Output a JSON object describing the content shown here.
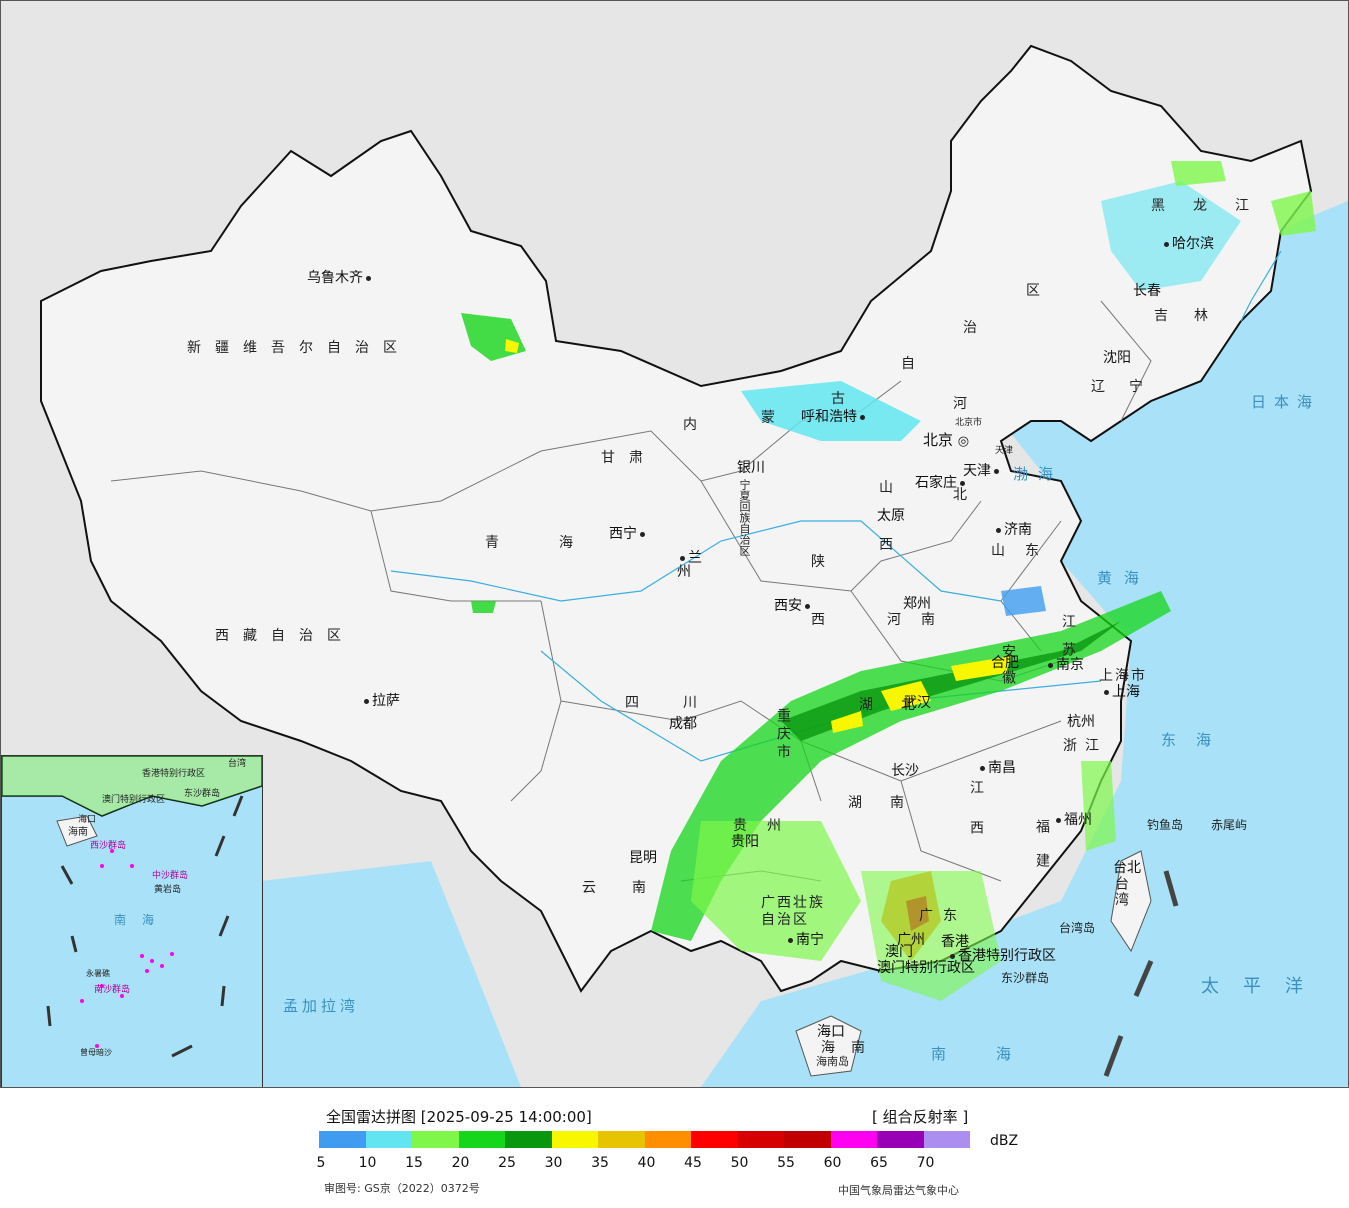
{
  "map": {
    "provinces": {
      "xinjiang": "新疆维吾尔自治区",
      "xizang": "西藏自治区",
      "qinghai": "青海",
      "gansu": "甘肃",
      "neimenggu_1": "内",
      "neimenggu_2": "蒙",
      "neimenggu_3": "古",
      "neimenggu_4": "自",
      "neimenggu_5": "治",
      "neimenggu_6": "区",
      "heilongjiang": "黑龙江",
      "jilin": "吉林",
      "liaoning": "辽宁",
      "hebei_1": "河",
      "hebei_2": "北",
      "shanxi_1": "山",
      "shanxi_2": "西",
      "shaanxi_1": "陕",
      "shaanxi_2": "西",
      "shandong": "山东",
      "henan": "河南",
      "jiangsu": "江苏",
      "anhui": "安徽",
      "hubei": "湖北",
      "sichuan": "四川",
      "chongqing": "重庆市",
      "guizhou": "贵州",
      "hunan": "湖南",
      "jiangxi": "江西",
      "zhejiang": "浙江",
      "fujian": "福建",
      "yunnan": "云南",
      "guangxi": "广西壮族自治区",
      "guangdong": "广东",
      "hainan": "海南",
      "taiwan": "台湾",
      "shanghai": "上海市",
      "ningxia": "宁夏回族自治区"
    },
    "cities": {
      "urumqi": "乌鲁木齐",
      "lhasa": "拉萨",
      "xining": "西宁",
      "lanzhou": "兰州",
      "yinchuan": "银川",
      "hohhot": "呼和浩特",
      "beijing_main": "北京",
      "beijing_small": "北京市",
      "tianjin_small": "天津",
      "tianjin": "天津",
      "shijiazhuang": "石家庄",
      "taiyuan": "太原",
      "jinan": "济南",
      "zhengzhou": "郑州",
      "xian": "西安",
      "chengdu": "成都",
      "wuhan": "武汉",
      "hefei": "合肥",
      "nanjing": "南京",
      "shanghai": "上海",
      "hangzhou": "杭州",
      "changsha": "长沙",
      "nanchang": "南昌",
      "fuzhou": "福州",
      "taibei": "台北",
      "guiyang": "贵阳",
      "kunming": "昆明",
      "nanning": "南宁",
      "guangzhou": "广州",
      "haikou": "海口",
      "harbin": "哈尔滨",
      "changchun": "长春",
      "shenyang": "沈阳",
      "hongkong": "香港",
      "hongkong_sar": "香港特别行政区",
      "macau": "澳门",
      "macau_sar": "澳门特别行政区"
    },
    "islands": {
      "diaoyu": "钓鱼岛",
      "chiwei": "赤尾屿",
      "taiwan_island": "台湾岛",
      "dongsha": "东沙群岛",
      "hainan_island": "海南岛"
    },
    "seas": {
      "bohai": "渤海",
      "huanghai": "黄海",
      "donghai": "东海",
      "nanhai": "南海",
      "taipingyang": "太平洋",
      "ribenhai": "日本海",
      "mengjialawan": "孟加拉湾"
    },
    "inset": {
      "nanhai": "南海",
      "zhongsha": "中沙群岛",
      "huangyan": "黄岩岛",
      "nansha": "南沙群岛",
      "yongshu": "永暑礁",
      "zengmu": "曾母暗沙",
      "xisha": "西沙群岛",
      "dongsha": "东沙群岛",
      "haikou": "海口",
      "hainan": "海南",
      "xianggang": "香港特别行政区",
      "aomen": "澳门特别行政区",
      "taiwan": "台湾"
    },
    "colors": {
      "land": "#f4f4f4",
      "outside": "#e6e6e6",
      "water": "#a9e2f8",
      "border": "#111111"
    }
  },
  "legend": {
    "title": "全国雷达拼图 [2025-09-25 14:00:00]",
    "product": "[ 组合反射率 ]",
    "unit": "dBZ",
    "colors": [
      "#3f9cf0",
      "#62e5f0",
      "#7ef74a",
      "#16d61b",
      "#0a9710",
      "#f8f700",
      "#e6c400",
      "#ff8f00",
      "#ff0000",
      "#d60000",
      "#c00000",
      "#ff00f0",
      "#9800b6",
      "#ab8ef0"
    ],
    "ticks": [
      "5",
      "10",
      "15",
      "20",
      "25",
      "30",
      "35",
      "40",
      "45",
      "50",
      "55",
      "60",
      "65",
      "70"
    ],
    "approval": "审图号: GS京（2022）0372号",
    "source": "中国气象局雷达气象中心"
  }
}
